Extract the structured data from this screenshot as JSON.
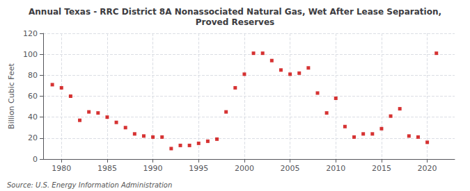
{
  "chart_data": {
    "type": "scatter",
    "title": "Annual Texas - RRC District 8A Nonassociated Natural Gas, Wet After Lease Separation,\nProved Reserves",
    "ylabel": "Billion Cubic Feet",
    "annotation": "Source: U.S. Energy Information Administration",
    "x": [
      1979,
      1980,
      1981,
      1982,
      1983,
      1984,
      1985,
      1986,
      1987,
      1988,
      1989,
      1990,
      1991,
      1992,
      1993,
      1994,
      1995,
      1996,
      1997,
      1998,
      1999,
      2000,
      2001,
      2002,
      2003,
      2004,
      2005,
      2006,
      2007,
      2008,
      2009,
      2010,
      2011,
      2012,
      2013,
      2014,
      2015,
      2016,
      2017,
      2018,
      2019,
      2020,
      2021
    ],
    "values": [
      71,
      68,
      60,
      37,
      45,
      44,
      40,
      35,
      30,
      24,
      22,
      21,
      21,
      10,
      13,
      13,
      15,
      17,
      19,
      45,
      68,
      81,
      101,
      101,
      94,
      85,
      81,
      82,
      87,
      63,
      44,
      58,
      31,
      21,
      24,
      24,
      29,
      41,
      48,
      22,
      21,
      16,
      101
    ],
    "color": "#cc0000",
    "marker": "square",
    "xlim": [
      1978,
      2023
    ],
    "xticks": [
      1980,
      1985,
      1990,
      1995,
      2000,
      2005,
      2010,
      2015,
      2020
    ],
    "ylim": [
      0,
      120
    ],
    "yticks": [
      0,
      20,
      40,
      60,
      80,
      100,
      120
    ],
    "grid": true
  }
}
